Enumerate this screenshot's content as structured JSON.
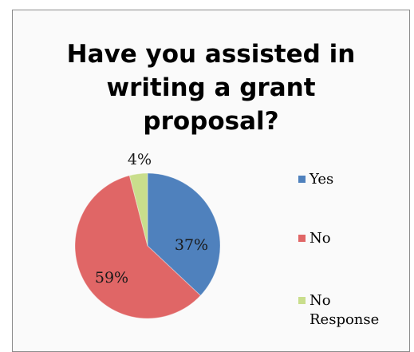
{
  "chart_data": {
    "type": "pie",
    "title_lines": [
      "Have you assisted in",
      "writing a grant",
      "proposal?"
    ],
    "categories": [
      "Yes",
      "No",
      "No Response"
    ],
    "legend_labels": [
      "Yes",
      "No",
      "No\nResponse"
    ],
    "values": [
      37,
      59,
      4
    ],
    "data_labels": [
      "37%",
      "59%",
      "4%"
    ],
    "colors": [
      "#4f81bd",
      "#e06666",
      "#c9de8c"
    ],
    "legend_placement": "right"
  }
}
